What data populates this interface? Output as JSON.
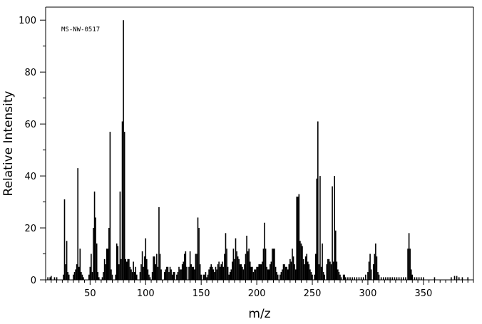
{
  "chart_data": {
    "type": "bar",
    "subtype": "mass-spectrum-stick",
    "xlabel": "m/z",
    "ylabel": "Relative Intensity",
    "annotation": "MS-NW-0517",
    "xlim": [
      10,
      395
    ],
    "ylim": [
      0,
      105
    ],
    "x_ticks": [
      50,
      100,
      150,
      200,
      250,
      300,
      350
    ],
    "y_ticks": [
      0,
      20,
      40,
      60,
      80,
      100
    ],
    "grid": false,
    "legend": "none",
    "color": "#000000",
    "peaks": [
      [
        12,
        1
      ],
      [
        14,
        1
      ],
      [
        15,
        1.5
      ],
      [
        18,
        1
      ],
      [
        20,
        1
      ],
      [
        26,
        2
      ],
      [
        27,
        31
      ],
      [
        28,
        6
      ],
      [
        29,
        15
      ],
      [
        30,
        3
      ],
      [
        31,
        2
      ],
      [
        35,
        2
      ],
      [
        36,
        3
      ],
      [
        37,
        4
      ],
      [
        38,
        6
      ],
      [
        39,
        43
      ],
      [
        40,
        5
      ],
      [
        41,
        12
      ],
      [
        42,
        3
      ],
      [
        43,
        2
      ],
      [
        44,
        1
      ],
      [
        49,
        2
      ],
      [
        50,
        5
      ],
      [
        51,
        10
      ],
      [
        52,
        3
      ],
      [
        53,
        20
      ],
      [
        54,
        34
      ],
      [
        55,
        24
      ],
      [
        56,
        14
      ],
      [
        57,
        3
      ],
      [
        58,
        1
      ],
      [
        61,
        1
      ],
      [
        62,
        3
      ],
      [
        63,
        8
      ],
      [
        64,
        6
      ],
      [
        65,
        12
      ],
      [
        66,
        12
      ],
      [
        67,
        20
      ],
      [
        68,
        57
      ],
      [
        69,
        4
      ],
      [
        70,
        2
      ],
      [
        73,
        2
      ],
      [
        74,
        14
      ],
      [
        75,
        13
      ],
      [
        76,
        6
      ],
      [
        77,
        34
      ],
      [
        78,
        8
      ],
      [
        79,
        61
      ],
      [
        80,
        100
      ],
      [
        81,
        57
      ],
      [
        82,
        8
      ],
      [
        83,
        7
      ],
      [
        84,
        8
      ],
      [
        85,
        8
      ],
      [
        86,
        5
      ],
      [
        87,
        4
      ],
      [
        88,
        3
      ],
      [
        89,
        7
      ],
      [
        90,
        3
      ],
      [
        91,
        5
      ],
      [
        92,
        2
      ],
      [
        95,
        3
      ],
      [
        96,
        6
      ],
      [
        97,
        11
      ],
      [
        98,
        5
      ],
      [
        99,
        9
      ],
      [
        100,
        16
      ],
      [
        101,
        8
      ],
      [
        102,
        4
      ],
      [
        103,
        2
      ],
      [
        104,
        1
      ],
      [
        106,
        3
      ],
      [
        107,
        9
      ],
      [
        108,
        9
      ],
      [
        109,
        6
      ],
      [
        110,
        10
      ],
      [
        111,
        5
      ],
      [
        112,
        28
      ],
      [
        113,
        10
      ],
      [
        114,
        4
      ],
      [
        117,
        3
      ],
      [
        118,
        4
      ],
      [
        119,
        5
      ],
      [
        120,
        5
      ],
      [
        121,
        3
      ],
      [
        122,
        5
      ],
      [
        123,
        4
      ],
      [
        124,
        2
      ],
      [
        125,
        3
      ],
      [
        126,
        3
      ],
      [
        128,
        2
      ],
      [
        129,
        3
      ],
      [
        130,
        5
      ],
      [
        131,
        4
      ],
      [
        132,
        4
      ],
      [
        133,
        6
      ],
      [
        134,
        7
      ],
      [
        135,
        10
      ],
      [
        136,
        11
      ],
      [
        137,
        5
      ],
      [
        139,
        5
      ],
      [
        140,
        11
      ],
      [
        141,
        6
      ],
      [
        142,
        5
      ],
      [
        143,
        5
      ],
      [
        144,
        4
      ],
      [
        145,
        10
      ],
      [
        146,
        10
      ],
      [
        147,
        24
      ],
      [
        148,
        20
      ],
      [
        149,
        6
      ],
      [
        150,
        2
      ],
      [
        152,
        2
      ],
      [
        153,
        2
      ],
      [
        154,
        3
      ],
      [
        155,
        1
      ],
      [
        156,
        2
      ],
      [
        157,
        4
      ],
      [
        158,
        5
      ],
      [
        159,
        6
      ],
      [
        160,
        5
      ],
      [
        161,
        4
      ],
      [
        162,
        3
      ],
      [
        163,
        5
      ],
      [
        164,
        4
      ],
      [
        165,
        6
      ],
      [
        166,
        7
      ],
      [
        167,
        5
      ],
      [
        168,
        6
      ],
      [
        169,
        7
      ],
      [
        170,
        5
      ],
      [
        171,
        10
      ],
      [
        172,
        18
      ],
      [
        173,
        12
      ],
      [
        174,
        5
      ],
      [
        175,
        2
      ],
      [
        176,
        3
      ],
      [
        177,
        4
      ],
      [
        178,
        7
      ],
      [
        179,
        12
      ],
      [
        180,
        8
      ],
      [
        181,
        16
      ],
      [
        182,
        11
      ],
      [
        183,
        9
      ],
      [
        184,
        8
      ],
      [
        185,
        6
      ],
      [
        186,
        6
      ],
      [
        187,
        5
      ],
      [
        188,
        4
      ],
      [
        189,
        6
      ],
      [
        190,
        10
      ],
      [
        191,
        17
      ],
      [
        192,
        11
      ],
      [
        193,
        12
      ],
      [
        194,
        7
      ],
      [
        195,
        5
      ],
      [
        196,
        5
      ],
      [
        197,
        3
      ],
      [
        198,
        4
      ],
      [
        199,
        4
      ],
      [
        200,
        5
      ],
      [
        201,
        5
      ],
      [
        202,
        6
      ],
      [
        203,
        6
      ],
      [
        204,
        6
      ],
      [
        205,
        7
      ],
      [
        206,
        12
      ],
      [
        207,
        22
      ],
      [
        208,
        12
      ],
      [
        209,
        5
      ],
      [
        210,
        4
      ],
      [
        211,
        4
      ],
      [
        212,
        6
      ],
      [
        213,
        7
      ],
      [
        214,
        12
      ],
      [
        215,
        12
      ],
      [
        216,
        12
      ],
      [
        217,
        5
      ],
      [
        218,
        3
      ],
      [
        219,
        2
      ],
      [
        221,
        2
      ],
      [
        222,
        3
      ],
      [
        223,
        4
      ],
      [
        224,
        6
      ],
      [
        225,
        6
      ],
      [
        226,
        5
      ],
      [
        227,
        5
      ],
      [
        228,
        4
      ],
      [
        229,
        6
      ],
      [
        230,
        8
      ],
      [
        231,
        7
      ],
      [
        232,
        12
      ],
      [
        233,
        9
      ],
      [
        234,
        6
      ],
      [
        235,
        4
      ],
      [
        236,
        32
      ],
      [
        237,
        32
      ],
      [
        238,
        33
      ],
      [
        239,
        15
      ],
      [
        240,
        14
      ],
      [
        241,
        13
      ],
      [
        242,
        8
      ],
      [
        243,
        6
      ],
      [
        244,
        9
      ],
      [
        245,
        10
      ],
      [
        246,
        7
      ],
      [
        247,
        6
      ],
      [
        248,
        4
      ],
      [
        249,
        3
      ],
      [
        250,
        2
      ],
      [
        252,
        2
      ],
      [
        253,
        10
      ],
      [
        254,
        39
      ],
      [
        255,
        61
      ],
      [
        256,
        6
      ],
      [
        257,
        40
      ],
      [
        258,
        5
      ],
      [
        259,
        14
      ],
      [
        260,
        3
      ],
      [
        261,
        2
      ],
      [
        263,
        6
      ],
      [
        264,
        8
      ],
      [
        265,
        8
      ],
      [
        266,
        7
      ],
      [
        267,
        6
      ],
      [
        268,
        36
      ],
      [
        269,
        7
      ],
      [
        270,
        40
      ],
      [
        271,
        19
      ],
      [
        272,
        7
      ],
      [
        273,
        4
      ],
      [
        274,
        3
      ],
      [
        275,
        2
      ],
      [
        276,
        1
      ],
      [
        278,
        2
      ],
      [
        279,
        2
      ],
      [
        280,
        1
      ],
      [
        282,
        1
      ],
      [
        284,
        1
      ],
      [
        286,
        1
      ],
      [
        288,
        1
      ],
      [
        290,
        1
      ],
      [
        292,
        1
      ],
      [
        294,
        1
      ],
      [
        296,
        1
      ],
      [
        298,
        2
      ],
      [
        300,
        3
      ],
      [
        301,
        7
      ],
      [
        302,
        10
      ],
      [
        303,
        4
      ],
      [
        305,
        6
      ],
      [
        306,
        10
      ],
      [
        307,
        14
      ],
      [
        308,
        9
      ],
      [
        309,
        3
      ],
      [
        310,
        2
      ],
      [
        312,
        1
      ],
      [
        314,
        1
      ],
      [
        316,
        1
      ],
      [
        318,
        1
      ],
      [
        320,
        1
      ],
      [
        322,
        1
      ],
      [
        324,
        1
      ],
      [
        326,
        1
      ],
      [
        328,
        1
      ],
      [
        330,
        1
      ],
      [
        332,
        1
      ],
      [
        334,
        1
      ],
      [
        336,
        12
      ],
      [
        337,
        18
      ],
      [
        338,
        12
      ],
      [
        339,
        4
      ],
      [
        340,
        2
      ],
      [
        342,
        1
      ],
      [
        344,
        1
      ],
      [
        346,
        1
      ],
      [
        348,
        1
      ],
      [
        350,
        1
      ],
      [
        360,
        1
      ],
      [
        375,
        1
      ],
      [
        378,
        1.5
      ],
      [
        380,
        1.5
      ],
      [
        382,
        1
      ],
      [
        385,
        1
      ],
      [
        390,
        1
      ]
    ]
  }
}
